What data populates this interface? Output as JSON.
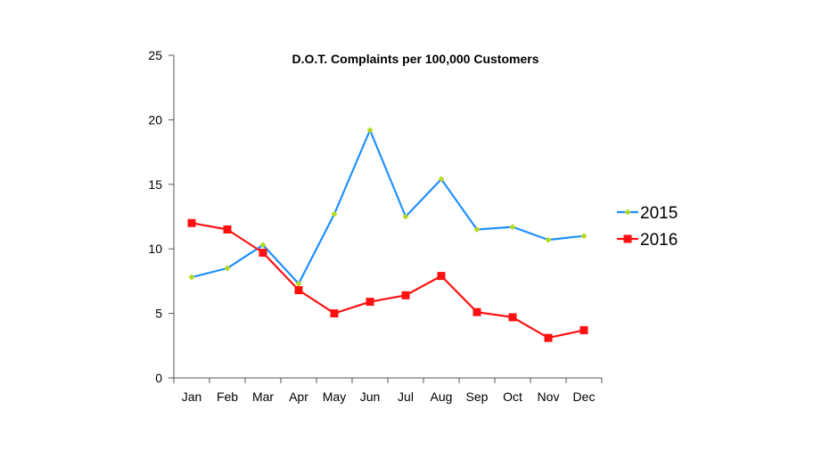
{
  "chart_data": {
    "type": "line",
    "title": "D.O.T. Complaints per 100,000 Customers",
    "xlabel": "",
    "ylabel": "",
    "categories": [
      "Jan",
      "Feb",
      "Mar",
      "Apr",
      "May",
      "Jun",
      "Jul",
      "Aug",
      "Sep",
      "Oct",
      "Nov",
      "Dec"
    ],
    "ylim": [
      0,
      25
    ],
    "yticks": [
      "0",
      "5",
      "10",
      "15",
      "20",
      "25"
    ],
    "grid": false,
    "legend_position": "right",
    "series": [
      {
        "name": "2015",
        "color": "#1e90ff",
        "marker": "diamond",
        "marker_color": "#b5d820",
        "values": [
          7.8,
          8.5,
          10.3,
          7.3,
          12.7,
          19.2,
          12.5,
          15.4,
          11.5,
          11.7,
          10.7,
          11.0
        ]
      },
      {
        "name": "2016",
        "color": "#ff1010",
        "marker": "square",
        "marker_color": "#ff1010",
        "values": [
          12.0,
          11.5,
          9.7,
          6.8,
          5.0,
          5.9,
          6.4,
          7.9,
          5.1,
          4.7,
          3.1,
          3.7
        ]
      }
    ]
  }
}
